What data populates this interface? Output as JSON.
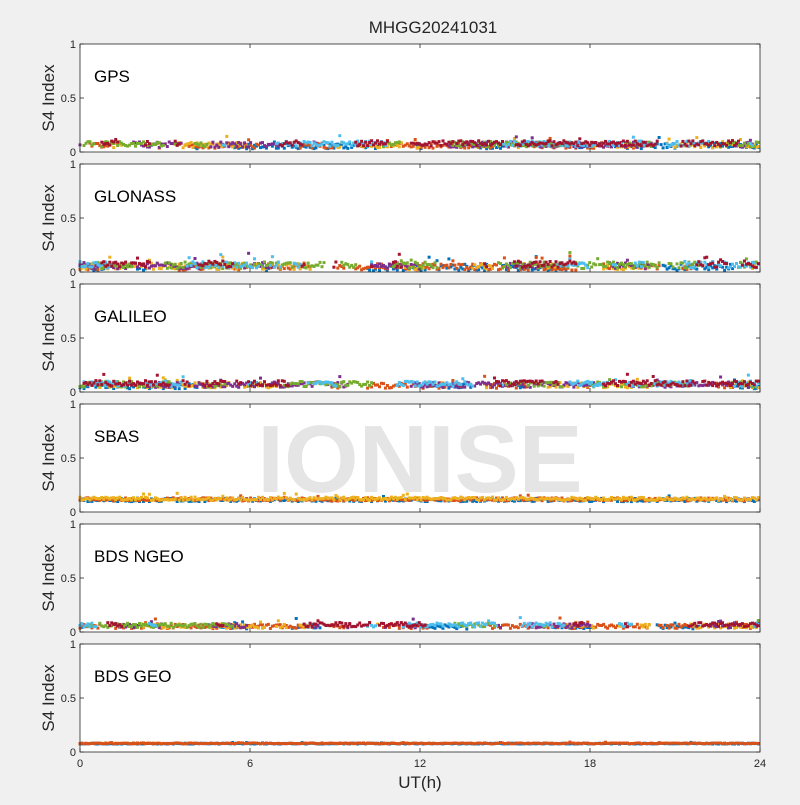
{
  "figure": {
    "title": "MHGG20241031",
    "xlabel": "UT(h)",
    "watermark": "IONISE"
  },
  "chart_data": {
    "type": "scatter",
    "xlim": [
      0,
      24
    ],
    "x_ticks": [
      "0",
      "6",
      "12",
      "18",
      "24"
    ],
    "x_tick_values": [
      0,
      6,
      12,
      18,
      24
    ],
    "ylim": [
      0,
      1
    ],
    "y_ticks": [
      "0",
      "0.5",
      "1"
    ],
    "y_tick_values": [
      0,
      0.5,
      1
    ],
    "ylabel": "S4 Index",
    "grid": false,
    "series_colors": [
      "#0072BD",
      "#D95319",
      "#EDB120",
      "#7E2F8E",
      "#77AC30",
      "#4DBEEE",
      "#A2142F"
    ],
    "panels": [
      {
        "label": "GPS",
        "base": 0.07,
        "spread": 0.05,
        "series_count": 7
      },
      {
        "label": "GLONASS",
        "base": 0.06,
        "spread": 0.06,
        "series_count": 7
      },
      {
        "label": "GALILEO",
        "base": 0.07,
        "spread": 0.05,
        "series_count": 7
      },
      {
        "label": "SBAS",
        "base": 0.12,
        "spread": 0.03,
        "series_count": 3
      },
      {
        "label": "BDS NGEO",
        "base": 0.06,
        "spread": 0.04,
        "series_count": 7
      },
      {
        "label": "BDS GEO",
        "base": 0.08,
        "spread": 0.008,
        "series_count": 2
      }
    ]
  }
}
